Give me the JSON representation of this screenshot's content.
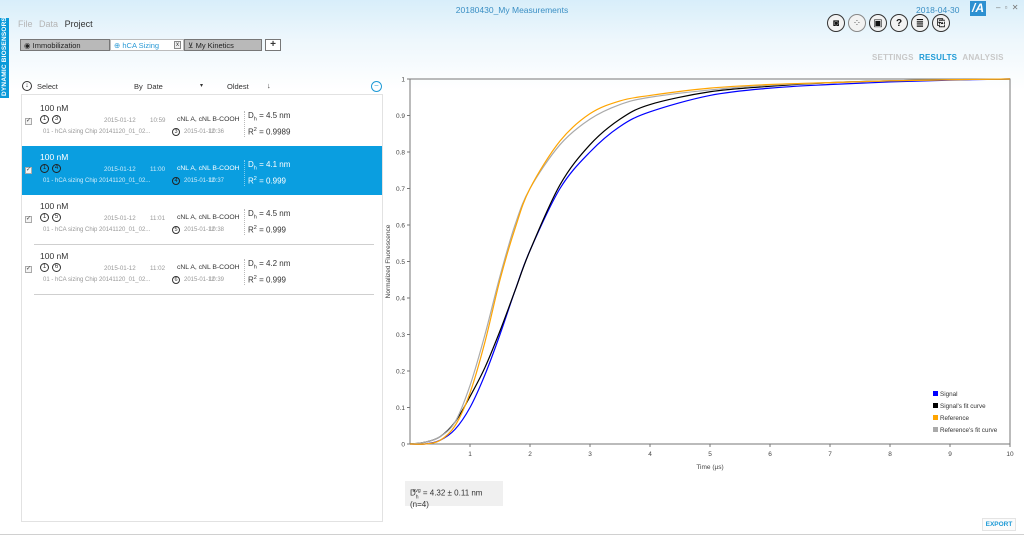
{
  "app": {
    "side_label": "DYNAMIC BIOSENSORS",
    "window_title": "20180430_My Measurements",
    "date": "2018-04-30",
    "logo": "/A",
    "window_controls": "– ▫ ✕"
  },
  "menu": {
    "items": [
      {
        "label": "File",
        "enabled": false
      },
      {
        "label": "Data",
        "enabled": false
      },
      {
        "label": "Project",
        "enabled": true
      }
    ]
  },
  "tabs": [
    {
      "label": "Immobilization",
      "icon": "eye-icon",
      "glyph": "◉",
      "active": false
    },
    {
      "label": "hCA Sizing",
      "icon": "sizing-icon",
      "glyph": "⊕",
      "active": true,
      "close": "x"
    },
    {
      "label": "My Kinetics",
      "icon": "kinetics-icon",
      "glyph": "⊻",
      "active": false
    }
  ],
  "add_tab_label": "+",
  "toolbar": [
    {
      "name": "camera-icon",
      "glyph": "◙"
    },
    {
      "name": "scatter-icon",
      "glyph": "⁘"
    },
    {
      "name": "save-icon",
      "glyph": "▣"
    },
    {
      "name": "help-icon",
      "glyph": "?"
    },
    {
      "name": "notes-icon",
      "glyph": "≣"
    },
    {
      "name": "export-doc-icon",
      "glyph": "⎘"
    }
  ],
  "views": {
    "settings": "SETTINGS",
    "results": "RESULTS",
    "analysis": "ANALYSIS"
  },
  "list_header": {
    "select_icon": "↓",
    "select_label": "Select",
    "by_label": "By",
    "sort_field": "Date",
    "dropdown_glyph": "▾",
    "order": "Oldest",
    "order_arrow": "↓",
    "collapse_glyph": "–"
  },
  "measurements": [
    {
      "concentration": "100 nM",
      "badge1": "1",
      "badge2": "3",
      "date": "2015-01-12",
      "time": "10:59",
      "chip": "cNL A, cNL B-COOH",
      "source": "01 - hCA sizing Chip 20141120_01_02...",
      "src_badge": "3",
      "src_date": "2015-01-12",
      "src_time": "10:36",
      "dh_label": "D",
      "dh_sub": "h",
      "dh_value": " = 4.5 nm",
      "r2_label": "R",
      "r2_sup": "2",
      "r2_value": " = 0.9989",
      "checked": "✓",
      "selected": false
    },
    {
      "concentration": "100 nM",
      "badge1": "1",
      "badge2": "4",
      "date": "2015-01-12",
      "time": "11:00",
      "chip": "cNL A, cNL B-COOH",
      "source": "01 - hCA sizing Chip 20141120_01_02...",
      "src_badge": "4",
      "src_date": "2015-01-12",
      "src_time": "10:37",
      "dh_label": "D",
      "dh_sub": "h",
      "dh_value": " = 4.1 nm",
      "r2_label": "R",
      "r2_sup": "2",
      "r2_value": " = 0.999",
      "checked": "✓",
      "selected": true
    },
    {
      "concentration": "100 nM",
      "badge1": "1",
      "badge2": "5",
      "date": "2015-01-12",
      "time": "11:01",
      "chip": "cNL A, cNL B-COOH",
      "source": "01 - hCA sizing Chip 20141120_01_02...",
      "src_badge": "5",
      "src_date": "2015-01-12",
      "src_time": "10:38",
      "dh_label": "D",
      "dh_sub": "h",
      "dh_value": " = 4.5 nm",
      "r2_label": "R",
      "r2_sup": "2",
      "r2_value": " = 0.999",
      "checked": "✓",
      "selected": false
    },
    {
      "concentration": "100 nM",
      "badge1": "1",
      "badge2": "6",
      "date": "2015-01-12",
      "time": "11:02",
      "chip": "cNL A, cNL B-COOH",
      "source": "01 - hCA sizing Chip 20141120_01_02...",
      "src_badge": "6",
      "src_date": "2015-01-12",
      "src_time": "10:39",
      "dh_label": "D",
      "dh_sub": "h",
      "dh_value": " = 4.2 nm",
      "r2_label": "R",
      "r2_sup": "2",
      "r2_value": " = 0.999",
      "checked": "✓",
      "selected": false
    }
  ],
  "summary": {
    "label": "D",
    "sub": "h",
    "sup": "avg",
    "value": "= 4.32 ± 0.11 nm (n=4)"
  },
  "export_label": "EXPORT",
  "chart_data": {
    "type": "line",
    "title": "",
    "xlabel": "Time (µs)",
    "ylabel": "Normalized Fluorescence",
    "xlim": [
      0,
      10
    ],
    "ylim": [
      0,
      1
    ],
    "xticks": [
      1,
      2,
      3,
      4,
      5,
      6,
      7,
      8,
      9,
      10
    ],
    "yticks": [
      0,
      0.1,
      0.2,
      0.3,
      0.4,
      0.5,
      0.6,
      0.7,
      0.8,
      0.9,
      1
    ],
    "grid": false,
    "legend_position": "lower right",
    "x": [
      0,
      0.25,
      0.5,
      0.75,
      1,
      1.25,
      1.5,
      1.75,
      2,
      2.5,
      3,
      3.5,
      4,
      5,
      6,
      7,
      8,
      9,
      10
    ],
    "series": [
      {
        "name": "Signal",
        "color": "#0000ff",
        "values": [
          0,
          0.0,
          0.01,
          0.04,
          0.1,
          0.19,
          0.3,
          0.42,
          0.53,
          0.7,
          0.8,
          0.87,
          0.91,
          0.955,
          0.975,
          0.985,
          0.992,
          0.997,
          1.0
        ]
      },
      {
        "name": "Signal's fit curve",
        "color": "#000000",
        "values": [
          0,
          0.005,
          0.02,
          0.06,
          0.13,
          0.21,
          0.31,
          0.42,
          0.53,
          0.71,
          0.82,
          0.89,
          0.93,
          0.965,
          0.98,
          0.99,
          0.995,
          0.998,
          1.0
        ]
      },
      {
        "name": "Reference",
        "color": "#ffa500",
        "values": [
          0,
          0.0,
          0.01,
          0.05,
          0.14,
          0.28,
          0.45,
          0.59,
          0.7,
          0.83,
          0.905,
          0.94,
          0.955,
          0.975,
          0.985,
          0.99,
          0.995,
          0.998,
          1.0
        ]
      },
      {
        "name": "Reference's fit curve",
        "color": "#aaaaaa",
        "values": [
          0,
          0.005,
          0.02,
          0.06,
          0.16,
          0.3,
          0.46,
          0.6,
          0.7,
          0.82,
          0.89,
          0.93,
          0.95,
          0.97,
          0.983,
          0.99,
          0.995,
          0.998,
          1.0
        ]
      }
    ]
  }
}
